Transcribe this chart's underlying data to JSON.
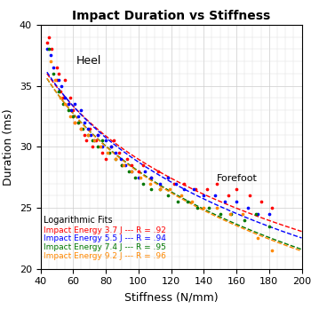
{
  "title": "Impact Duration vs Stiffness",
  "xlabel": "Stiffness (N/mm)",
  "ylabel": "Duration (ms)",
  "xlim": [
    40,
    200
  ],
  "ylim": [
    20,
    40
  ],
  "xticks": [
    40,
    60,
    80,
    100,
    120,
    140,
    160,
    180,
    200
  ],
  "yticks": [
    20,
    25,
    30,
    35,
    40
  ],
  "label_heel": "Heel",
  "label_forefoot": "Forefoot",
  "label_fits": "Logarithmic Fits",
  "series": [
    {
      "label": "Impact Energy 3.7 J --- R = .92",
      "color": "#ff0000",
      "scatter_x": [
        44,
        45,
        47,
        50,
        50,
        51,
        52,
        54,
        55,
        57,
        58,
        60,
        60,
        61,
        63,
        65,
        67,
        68,
        70,
        72,
        74,
        75,
        78,
        80,
        83,
        85,
        88,
        90,
        93,
        96,
        100,
        103,
        108,
        112,
        118,
        122,
        128,
        135,
        142,
        148,
        155,
        160,
        168,
        175,
        182
      ],
      "scatter_y": [
        38.5,
        39.0,
        38.0,
        36.5,
        35.5,
        36.0,
        34.5,
        34.0,
        35.5,
        33.5,
        34.0,
        33.0,
        32.5,
        32.0,
        32.0,
        31.5,
        31.0,
        30.5,
        31.5,
        30.0,
        30.5,
        31.0,
        29.5,
        29.0,
        30.0,
        30.5,
        29.5,
        28.5,
        29.0,
        28.5,
        28.0,
        28.5,
        27.5,
        28.0,
        27.5,
        27.0,
        27.0,
        26.5,
        26.5,
        27.0,
        26.0,
        26.5,
        26.0,
        25.5,
        25.0
      ]
    },
    {
      "label": "Impact Energy 5.5 J --- R = .94",
      "color": "#0000ff",
      "scatter_x": [
        44,
        46,
        48,
        51,
        53,
        55,
        57,
        59,
        61,
        63,
        65,
        67,
        69,
        71,
        73,
        75,
        78,
        80,
        83,
        86,
        89,
        92,
        96,
        100,
        104,
        108,
        113,
        118,
        123,
        128,
        134,
        140,
        147,
        153,
        160,
        167,
        173,
        180
      ],
      "scatter_y": [
        38.0,
        37.5,
        36.5,
        35.5,
        35.0,
        34.0,
        33.5,
        33.0,
        33.5,
        32.5,
        33.0,
        32.0,
        31.5,
        31.0,
        30.5,
        31.0,
        30.0,
        30.5,
        30.0,
        29.5,
        29.0,
        28.5,
        28.0,
        27.5,
        28.0,
        27.5,
        27.0,
        27.5,
        27.0,
        26.5,
        26.5,
        26.0,
        26.0,
        25.5,
        25.5,
        25.0,
        24.5,
        24.5
      ]
    },
    {
      "label": "Impact Energy 7.4 J --- R = .95",
      "color": "#007700",
      "scatter_x": [
        45,
        48,
        51,
        54,
        57,
        60,
        63,
        66,
        69,
        72,
        75,
        78,
        82,
        86,
        90,
        94,
        98,
        103,
        108,
        113,
        118,
        124,
        130,
        136,
        143,
        150,
        157,
        165,
        172,
        180
      ],
      "scatter_y": [
        38.0,
        36.0,
        34.5,
        33.5,
        33.0,
        32.5,
        32.0,
        31.5,
        31.0,
        30.5,
        30.0,
        30.5,
        29.5,
        29.0,
        28.5,
        28.0,
        27.5,
        27.0,
        26.5,
        26.5,
        26.0,
        25.5,
        25.5,
        25.0,
        25.0,
        24.5,
        24.5,
        24.0,
        24.5,
        23.5
      ]
    },
    {
      "label": "Impact Energy 9.2 J --- R = .96",
      "color": "#ff8800",
      "scatter_x": [
        46,
        49,
        52,
        55,
        58,
        61,
        65,
        69,
        73,
        77,
        81,
        86,
        91,
        96,
        101,
        107,
        113,
        119,
        126,
        133,
        140,
        148,
        156,
        164,
        173,
        182
      ],
      "scatter_y": [
        37.0,
        35.5,
        34.0,
        33.5,
        32.5,
        32.0,
        31.5,
        31.0,
        30.5,
        30.0,
        29.5,
        29.0,
        28.5,
        28.0,
        27.5,
        27.0,
        26.5,
        26.5,
        26.0,
        25.5,
        25.0,
        25.0,
        24.5,
        24.5,
        22.5,
        21.5
      ]
    }
  ]
}
